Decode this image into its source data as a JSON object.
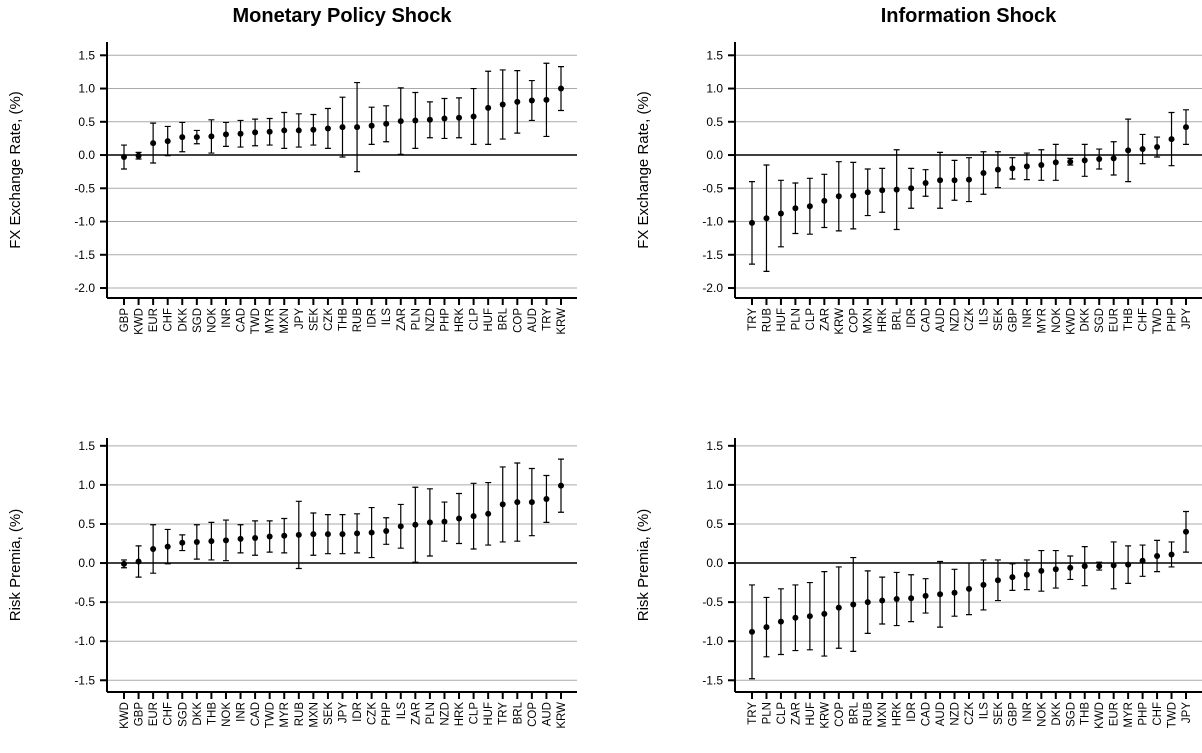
{
  "chart_data": [
    {
      "type": "errorbar",
      "title": "Monetary Policy Shock",
      "ylabel": "FX Exchange Rate, (%)",
      "categories": [
        "GBP",
        "KWD",
        "EUR",
        "CHF",
        "DKK",
        "SGD",
        "NOK",
        "INR",
        "CAD",
        "TWD",
        "MYR",
        "MXN",
        "JPY",
        "SEK",
        "CZK",
        "THB",
        "RUB",
        "IDR",
        "ILS",
        "ZAR",
        "PLN",
        "NZD",
        "PHP",
        "HRK",
        "CLP",
        "HUF",
        "BRL",
        "COP",
        "AUD",
        "TRY",
        "KRW"
      ],
      "values": [
        -0.03,
        -0.01,
        0.18,
        0.21,
        0.27,
        0.27,
        0.28,
        0.31,
        0.32,
        0.34,
        0.35,
        0.37,
        0.37,
        0.38,
        0.4,
        0.42,
        0.42,
        0.44,
        0.47,
        0.51,
        0.52,
        0.53,
        0.55,
        0.56,
        0.58,
        0.71,
        0.76,
        0.8,
        0.82,
        0.83,
        1.0
      ],
      "errors": [
        0.18,
        0.05,
        0.3,
        0.22,
        0.22,
        0.1,
        0.25,
        0.18,
        0.2,
        0.2,
        0.2,
        0.27,
        0.25,
        0.23,
        0.3,
        0.45,
        0.67,
        0.28,
        0.27,
        0.5,
        0.42,
        0.27,
        0.3,
        0.3,
        0.42,
        0.55,
        0.52,
        0.47,
        0.3,
        0.55,
        0.33
      ],
      "ylim": [
        -2.15,
        1.7
      ],
      "yticks": [
        1.5,
        {
          "value": 1,
          "label": "1.0"
        },
        0.5,
        {
          "value": 0,
          "label": "0.0"
        },
        -0.5,
        {
          "value": -1,
          "label": "-1.0"
        },
        -1.5,
        {
          "value": -2,
          "label": "-2.0"
        }
      ],
      "grid": true,
      "zero_line": true,
      "color": "#000000"
    },
    {
      "type": "errorbar",
      "title": "Information Shock",
      "ylabel": "FX Exchange Rate, (%)",
      "categories": [
        "TRY",
        "RUB",
        "HUF",
        "PLN",
        "CLP",
        "ZAR",
        "KRW",
        "COP",
        "MXN",
        "HRK",
        "BRL",
        "IDR",
        "CAD",
        "AUD",
        "NZD",
        "CZK",
        "ILS",
        "SEK",
        "GBP",
        "INR",
        "MYR",
        "NOK",
        "KWD",
        "DKK",
        "SGD",
        "EUR",
        "THB",
        "CHF",
        "TWD",
        "PHP",
        "JPY"
      ],
      "values": [
        -1.02,
        -0.95,
        -0.88,
        -0.8,
        -0.77,
        -0.69,
        -0.62,
        -0.61,
        -0.56,
        -0.53,
        -0.52,
        -0.5,
        -0.42,
        -0.38,
        -0.38,
        -0.37,
        -0.27,
        -0.22,
        -0.2,
        -0.17,
        -0.15,
        -0.11,
        -0.1,
        -0.08,
        -0.06,
        -0.05,
        0.07,
        0.09,
        0.12,
        0.24,
        0.42
      ],
      "errors": [
        0.62,
        0.8,
        0.5,
        0.38,
        0.42,
        0.4,
        0.52,
        0.5,
        0.35,
        0.33,
        0.6,
        0.3,
        0.2,
        0.42,
        0.3,
        0.33,
        0.32,
        0.27,
        0.16,
        0.2,
        0.23,
        0.27,
        0.05,
        0.24,
        0.15,
        0.25,
        0.47,
        0.22,
        0.15,
        0.4,
        0.26
      ],
      "ylim": [
        -2.15,
        1.7
      ],
      "yticks": [
        1.5,
        {
          "value": 1,
          "label": "1.0"
        },
        0.5,
        {
          "value": 0,
          "label": "0.0"
        },
        -0.5,
        {
          "value": -1,
          "label": "-1.0"
        },
        -1.5,
        {
          "value": -2,
          "label": "-2.0"
        }
      ],
      "grid": true,
      "zero_line": true,
      "color": "#000000"
    },
    {
      "type": "errorbar",
      "ylabel": "Risk Premia, (%)",
      "categories": [
        "KWD",
        "GBP",
        "EUR",
        "CHF",
        "SGD",
        "DKK",
        "THB",
        "NOK",
        "INR",
        "CAD",
        "TWD",
        "MYR",
        "RUB",
        "MXN",
        "SEK",
        "JPY",
        "IDR",
        "CZK",
        "PHP",
        "ILS",
        "ZAR",
        "PLN",
        "NZD",
        "HRK",
        "CLP",
        "HUF",
        "TRY",
        "BRL",
        "COP",
        "AUD",
        "KRW"
      ],
      "values": [
        -0.01,
        0.02,
        0.18,
        0.21,
        0.26,
        0.27,
        0.28,
        0.29,
        0.31,
        0.32,
        0.34,
        0.35,
        0.36,
        0.37,
        0.37,
        0.37,
        0.38,
        0.39,
        0.41,
        0.47,
        0.49,
        0.52,
        0.53,
        0.57,
        0.6,
        0.63,
        0.75,
        0.78,
        0.78,
        0.82,
        0.99
      ],
      "errors": [
        0.05,
        0.2,
        0.31,
        0.22,
        0.1,
        0.22,
        0.24,
        0.26,
        0.18,
        0.22,
        0.2,
        0.22,
        0.43,
        0.27,
        0.25,
        0.25,
        0.25,
        0.32,
        0.17,
        0.28,
        0.48,
        0.43,
        0.25,
        0.32,
        0.42,
        0.4,
        0.48,
        0.5,
        0.43,
        0.3,
        0.34
      ],
      "ylim": [
        -1.65,
        1.6
      ],
      "yticks": [
        1.5,
        {
          "value": 1,
          "label": "1.0"
        },
        0.5,
        {
          "value": 0,
          "label": "0.0"
        },
        -0.5,
        {
          "value": -1,
          "label": "-1.0"
        },
        -1.5
      ],
      "grid": true,
      "zero_line": true,
      "color": "#000000"
    },
    {
      "type": "errorbar",
      "ylabel": "Risk Premia, (%)",
      "categories": [
        "TRY",
        "PLN",
        "CLP",
        "ZAR",
        "HUF",
        "KRW",
        "COP",
        "BRL",
        "RUB",
        "MXN",
        "HRK",
        "IDR",
        "CAD",
        "AUD",
        "NZD",
        "CZK",
        "ILS",
        "SEK",
        "GBP",
        "INR",
        "NOK",
        "DKK",
        "SGD",
        "THB",
        "KWD",
        "EUR",
        "MYR",
        "PHP",
        "CHF",
        "TWD",
        "JPY"
      ],
      "values": [
        -0.88,
        -0.82,
        -0.75,
        -0.7,
        -0.68,
        -0.65,
        -0.57,
        -0.53,
        -0.5,
        -0.48,
        -0.46,
        -0.45,
        -0.42,
        -0.4,
        -0.38,
        -0.33,
        -0.28,
        -0.22,
        -0.18,
        -0.15,
        -0.1,
        -0.08,
        -0.06,
        -0.04,
        -0.04,
        -0.03,
        -0.02,
        0.03,
        0.09,
        0.11,
        0.4
      ],
      "errors": [
        0.6,
        0.38,
        0.42,
        0.42,
        0.43,
        0.54,
        0.52,
        0.6,
        0.4,
        0.3,
        0.34,
        0.3,
        0.22,
        0.42,
        0.3,
        0.33,
        0.32,
        0.26,
        0.17,
        0.19,
        0.26,
        0.24,
        0.15,
        0.25,
        0.05,
        0.3,
        0.24,
        0.2,
        0.2,
        0.16,
        0.26
      ],
      "ylim": [
        -1.65,
        1.6
      ],
      "yticks": [
        1.5,
        {
          "value": 1,
          "label": "1.0"
        },
        0.5,
        {
          "value": 0,
          "label": "0.0"
        },
        -0.5,
        {
          "value": -1,
          "label": "-1.0"
        },
        -1.5
      ],
      "grid": true,
      "zero_line": true,
      "color": "#000000"
    }
  ]
}
